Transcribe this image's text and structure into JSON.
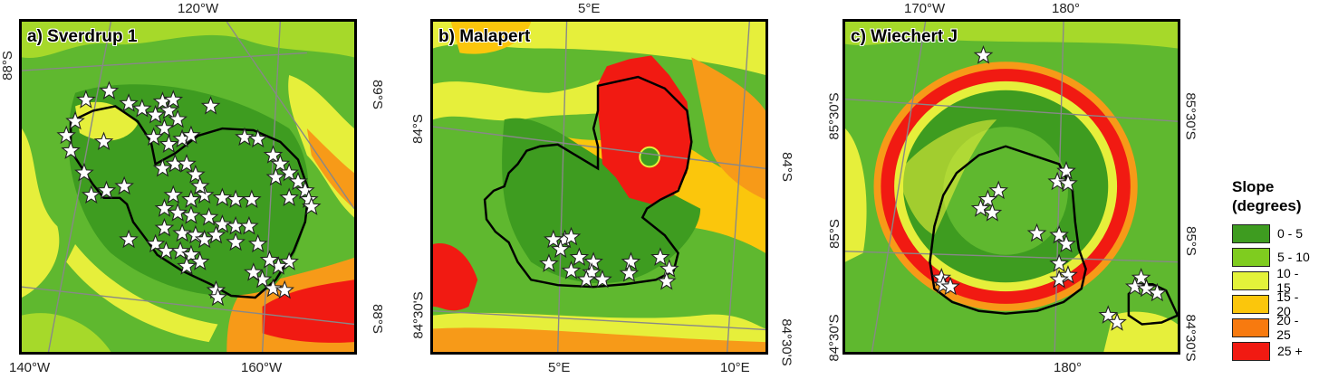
{
  "panels": [
    {
      "title": "a) Sverdrup 1",
      "top_labels": [
        "120°W"
      ],
      "bottom_labels": [
        "140°W",
        "160°W"
      ],
      "left_labels": [
        "88°S"
      ],
      "right_labels": [
        "89°S",
        "88°S"
      ]
    },
    {
      "title": "b) Malapert",
      "top_labels": [
        "5°E"
      ],
      "bottom_labels": [
        "5°E",
        "10°E"
      ],
      "left_labels": [
        "84°S",
        "84°30'S"
      ],
      "right_labels": [
        "84°S",
        "84°30'S"
      ]
    },
    {
      "title": "c) Wiechert J",
      "top_labels": [
        "170°W",
        "180°"
      ],
      "bottom_labels": [
        "180°"
      ],
      "left_labels": [
        "85°30'S",
        "85°S",
        "84°30'S"
      ],
      "right_labels": [
        "85°30'S",
        "85°S",
        "84°30'S"
      ]
    }
  ],
  "legend": {
    "title_line1": "Slope",
    "title_line2": "(degrees)",
    "classes": [
      {
        "label": "0 - 5",
        "color": "#3e9c20"
      },
      {
        "label": "5 - 10",
        "color": "#7fcc1f"
      },
      {
        "label": "10 - 15",
        "color": "#e3f23a"
      },
      {
        "label": "15 - 20",
        "color": "#fbc60c"
      },
      {
        "label": "20 - 25",
        "color": "#f77a0f"
      },
      {
        "label": "25 +",
        "color": "#f11a12"
      }
    ]
  }
}
